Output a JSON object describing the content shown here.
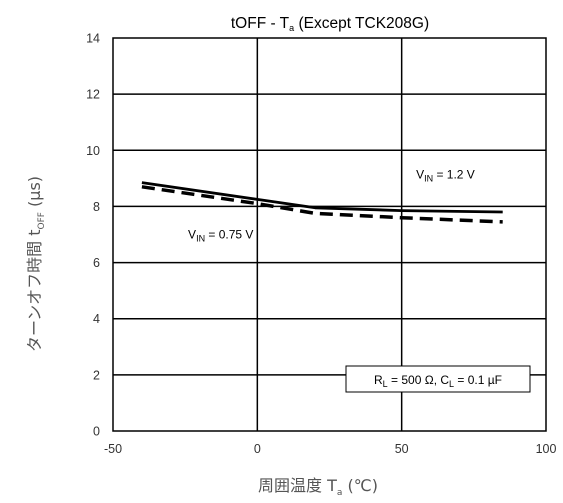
{
  "chart_data": {
    "type": "line",
    "title_main": "tOFF - T",
    "title_sub": "a",
    "title_rest": " (Except TCK208G)",
    "xlabel_main": "周囲温度  T",
    "xlabel_sub": "a",
    "xlabel_rest": "  (℃)",
    "ylabel_main": "ターンオフ時間 t",
    "ylabel_sub": "OFF",
    "ylabel_rest": " (µs)",
    "xlim": [
      -50,
      100
    ],
    "ylim": [
      0,
      14
    ],
    "x_ticks": [
      -50,
      0,
      50,
      100
    ],
    "y_ticks": [
      0,
      2,
      4,
      6,
      8,
      10,
      12,
      14
    ],
    "x_gridlines": [
      0,
      50
    ],
    "y_gridlines": [
      2,
      4,
      6,
      8,
      10,
      12
    ],
    "series": [
      {
        "name": "VIN = 1.2 V",
        "style": "solid",
        "color": "#000000",
        "x": [
          -40,
          0,
          20,
          50,
          85
        ],
        "y": [
          8.85,
          8.25,
          7.95,
          7.85,
          7.8
        ]
      },
      {
        "name": "VIN = 0.75 V",
        "style": "dashed",
        "color": "#000000",
        "x": [
          -40,
          0,
          20,
          50,
          85
        ],
        "y": [
          8.7,
          8.1,
          7.75,
          7.6,
          7.45
        ]
      }
    ],
    "annotations": [
      {
        "main": "V",
        "sub": "IN",
        "rest": " = 1.2 V",
        "at": [
          55,
          9.0
        ]
      },
      {
        "main": "V",
        "sub": "IN",
        "rest": " = 0.75 V",
        "at": [
          -24,
          6.85
        ]
      }
    ],
    "condition_box": {
      "parts": [
        {
          "text": "R",
          "sub": false
        },
        {
          "text": "L",
          "sub": true
        },
        {
          "text": " = 500 Ω, C",
          "sub": false
        },
        {
          "text": "L",
          "sub": true
        },
        {
          "text": " = 0.1 µF",
          "sub": false
        }
      ]
    }
  }
}
